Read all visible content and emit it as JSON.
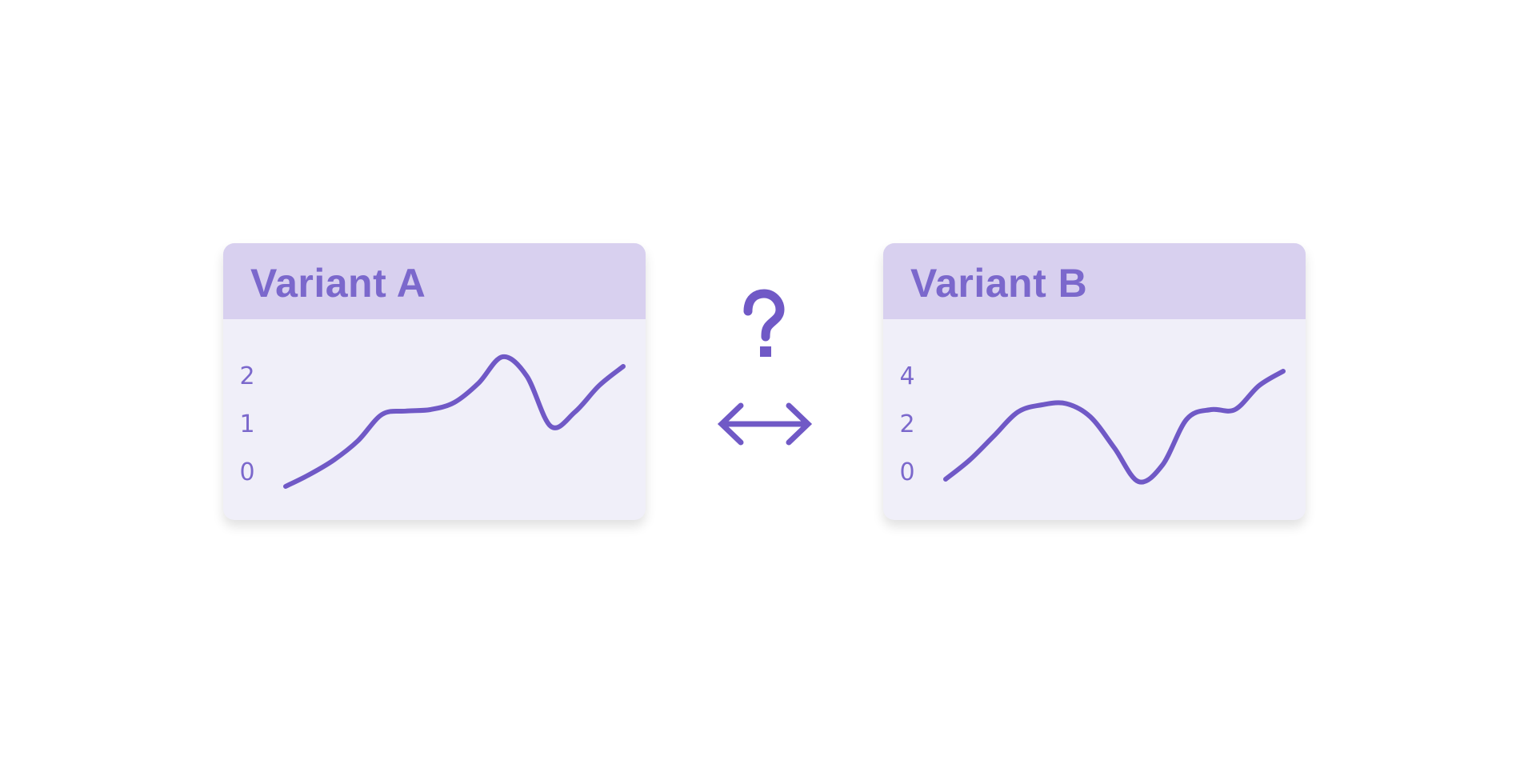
{
  "colors": {
    "accent": "#7b68cc",
    "line": "#7059c6",
    "header_bg": "#d8d0ef",
    "card_bg": "#f0eff9",
    "page_bg": "#ffffff"
  },
  "icons": {
    "center_top": "question-mark-icon",
    "center_bottom": "double-arrow-horizontal-icon"
  },
  "chart_data": [
    {
      "type": "line",
      "title": "Variant A",
      "xlabel": "",
      "ylabel": "",
      "ylim": [
        0,
        2
      ],
      "yticks": [
        "0",
        "1",
        "2"
      ],
      "x": [
        0,
        1,
        2,
        3,
        4,
        5,
        6,
        7,
        8,
        9,
        10,
        11,
        12,
        13,
        14
      ],
      "series": [
        {
          "values": [
            -0.3,
            -0.05,
            0.25,
            0.65,
            1.2,
            1.27,
            1.3,
            1.45,
            1.85,
            2.4,
            2.0,
            0.95,
            1.25,
            1.8,
            2.2
          ]
        }
      ]
    },
    {
      "type": "line",
      "title": "Variant B",
      "xlabel": "",
      "ylabel": "",
      "ylim": [
        0,
        4
      ],
      "yticks": [
        "0",
        "2",
        "4"
      ],
      "x": [
        0,
        1,
        2,
        3,
        4,
        5,
        6,
        7,
        8,
        9,
        10,
        11,
        12,
        13,
        14
      ],
      "series": [
        {
          "values": [
            -0.3,
            0.5,
            1.5,
            2.5,
            2.8,
            2.85,
            2.3,
            1.0,
            -0.4,
            0.3,
            2.2,
            2.6,
            2.6,
            3.6,
            4.2
          ]
        }
      ]
    }
  ]
}
